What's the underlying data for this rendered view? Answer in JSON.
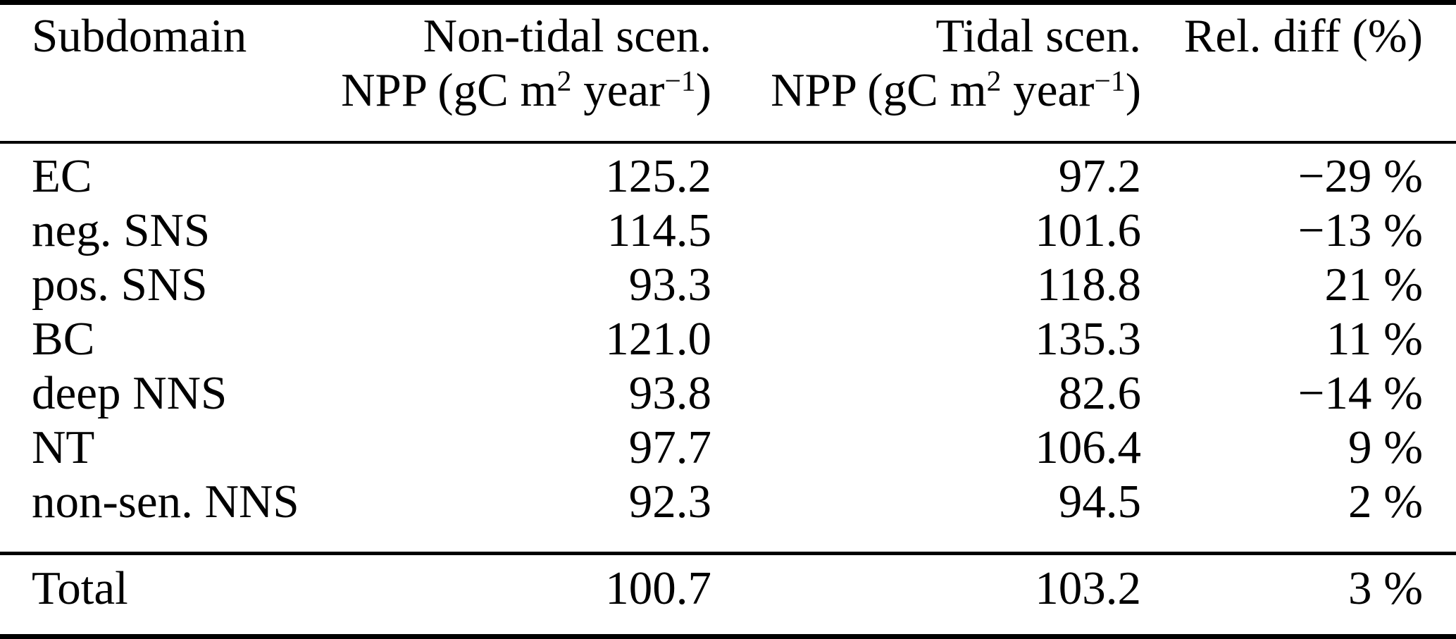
{
  "table": {
    "columns": [
      {
        "id": "subdomain",
        "header": "Subdomain",
        "align": "left"
      },
      {
        "id": "non_tidal",
        "header": "Non-tidal scen.",
        "align": "right"
      },
      {
        "id": "tidal",
        "header": "Tidal scen.",
        "align": "right"
      },
      {
        "id": "rel_diff",
        "header": "Rel. diff (%)",
        "align": "right"
      }
    ],
    "npp_unit": {
      "pre": "NPP (gC m",
      "sup_a": "2",
      "mid": " year",
      "sup_b": "−1",
      "post": ")"
    },
    "rows": [
      {
        "subdomain": "EC",
        "non_tidal": "125.2",
        "tidal": "97.2",
        "rel_diff": "−29 %"
      },
      {
        "subdomain": "neg. SNS",
        "non_tidal": "114.5",
        "tidal": "101.6",
        "rel_diff": "−13 %"
      },
      {
        "subdomain": "pos. SNS",
        "non_tidal": "93.3",
        "tidal": "118.8",
        "rel_diff": "21 %"
      },
      {
        "subdomain": "BC",
        "non_tidal": "121.0",
        "tidal": "135.3",
        "rel_diff": "11 %"
      },
      {
        "subdomain": "deep NNS",
        "non_tidal": "93.8",
        "tidal": "82.6",
        "rel_diff": "−14 %"
      },
      {
        "subdomain": "NT",
        "non_tidal": "97.7",
        "tidal": "106.4",
        "rel_diff": "9 %"
      },
      {
        "subdomain": "non-sen. NNS",
        "non_tidal": "92.3",
        "tidal": "94.5",
        "rel_diff": "2 %"
      }
    ],
    "total_row": {
      "subdomain": "Total",
      "non_tidal": "100.7",
      "tidal": "103.2",
      "rel_diff": "3 %"
    }
  },
  "colors": {
    "background": "#ffffff",
    "text": "#000000",
    "rule": "#000000"
  }
}
